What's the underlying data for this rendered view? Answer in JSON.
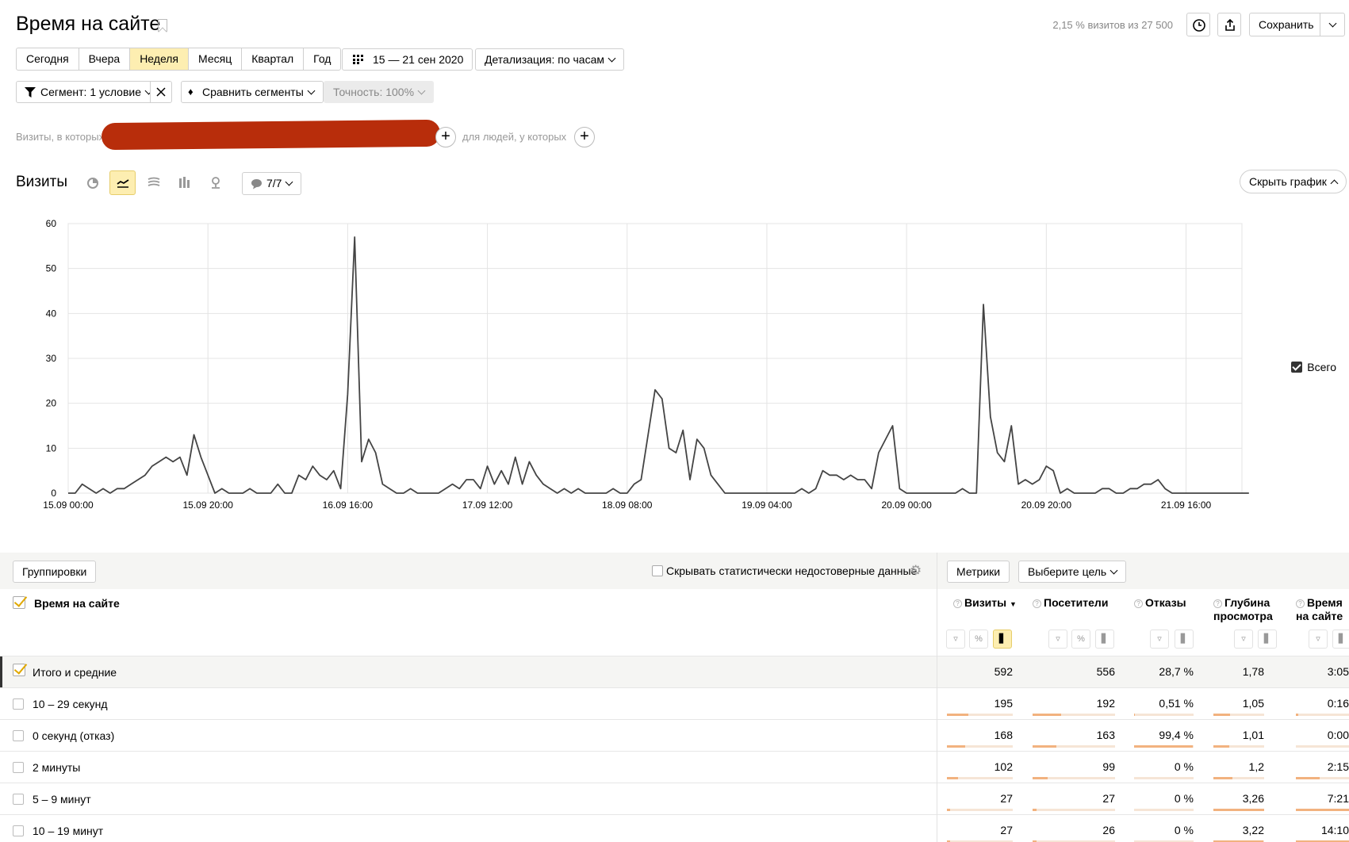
{
  "header": {
    "title": "Время на сайте",
    "visit_share": "2,15 % визитов из 27 500",
    "save_label": "Сохранить"
  },
  "periods": [
    "Сегодня",
    "Вчера",
    "Неделя",
    "Месяц",
    "Квартал",
    "Год"
  ],
  "active_period": "Неделя",
  "date_range": "15 — 21 сен 2020",
  "detail": "Детализация: по часам",
  "segment": {
    "label": "Сегмент: 1 условие",
    "compare_label": "Сравнить сегменты",
    "accuracy_label": "Точность: 100%",
    "visits_condition": "Визиты, в которых",
    "people_condition": "для людей, у которых"
  },
  "chart_panel": {
    "title": "Визиты",
    "notes": "7/7",
    "hide_label": "Скрыть график",
    "legend": "Всего"
  },
  "chart_data": {
    "type": "line",
    "series": [
      {
        "name": "Всего",
        "values": [
          0,
          0,
          2,
          1,
          0,
          1,
          0,
          1,
          1,
          2,
          3,
          4,
          6,
          7,
          8,
          7,
          8,
          4,
          13,
          8,
          4,
          0,
          1,
          0,
          0,
          0,
          1,
          0,
          0,
          0,
          2,
          0,
          0,
          4,
          3,
          6,
          4,
          3,
          5,
          1,
          22,
          57,
          7,
          12,
          9,
          2,
          1,
          0,
          0,
          1,
          0,
          0,
          0,
          0,
          1,
          2,
          1,
          3,
          3,
          1,
          6,
          2,
          5,
          2,
          8,
          2,
          7,
          4,
          2,
          1,
          0,
          1,
          0,
          1,
          0,
          0,
          0,
          0,
          1,
          0,
          0,
          2,
          3,
          13,
          23,
          21,
          10,
          9,
          14,
          3,
          12,
          10,
          4,
          2,
          0,
          0,
          0,
          0,
          0,
          0,
          0,
          0,
          0,
          0,
          0,
          1,
          0,
          1,
          5,
          4,
          4,
          3,
          4,
          3,
          3,
          1,
          9,
          12,
          15,
          1,
          0,
          0,
          0,
          0,
          0,
          0,
          0,
          0,
          1,
          0,
          0,
          42,
          17,
          9,
          7,
          15,
          2,
          3,
          2,
          3,
          6,
          5,
          0,
          1,
          0,
          0,
          0,
          0,
          1,
          1,
          0,
          0,
          1,
          1,
          2,
          2,
          3,
          1,
          0,
          0,
          0,
          0,
          0,
          0,
          0,
          0,
          0,
          0,
          0,
          0
        ]
      }
    ],
    "x_tick_labels": [
      "15.09 00:00",
      "15.09 20:00",
      "16.09 16:00",
      "17.09 12:00",
      "18.09 08:00",
      "19.09 04:00",
      "20.09 00:00",
      "20.09 20:00",
      "21.09 16:00"
    ],
    "x_tick_hours": [
      0,
      20,
      40,
      60,
      80,
      100,
      120,
      140,
      160
    ],
    "y_ticks": [
      0,
      10,
      20,
      30,
      40,
      50,
      60
    ],
    "ylim": [
      0,
      60
    ],
    "x_hours_total": 168,
    "grid": true,
    "legend_position": "right"
  },
  "table": {
    "groupings_label": "Группировки",
    "hide_unreliable_label": "Скрывать статистически недостоверные данные",
    "metrics_label": "Метрики",
    "goal_label": "Выберите цель",
    "dimension_header": "Время на сайте",
    "columns": [
      {
        "l1": "Визиты",
        "l2": "",
        "sort": "▼"
      },
      {
        "l1": "Посетители",
        "l2": ""
      },
      {
        "l1": "Отказы",
        "l2": ""
      },
      {
        "l1": "Глубина",
        "l2": "просмотра"
      },
      {
        "l1": "Время",
        "l2": "на сайте"
      }
    ],
    "rows": [
      {
        "label": "Итого и средние",
        "cells": [
          "592",
          "556",
          "28,7 %",
          "1,78",
          "3:05"
        ]
      },
      {
        "label": "10 – 29 секунд",
        "cells": [
          "195",
          "192",
          "0,51 %",
          "1,05",
          "0:16"
        ],
        "bars": [
          0.33,
          0.345,
          0.005,
          0.33,
          0.05
        ]
      },
      {
        "label": "0 секунд (отказ)",
        "cells": [
          "168",
          "163",
          "99,4 %",
          "1,01",
          "0:00"
        ],
        "bars": [
          0.28,
          0.29,
          0.99,
          0.31,
          0.0
        ]
      },
      {
        "label": "2 минуты",
        "cells": [
          "102",
          "99",
          "0 %",
          "1,2",
          "2:15"
        ],
        "bars": [
          0.17,
          0.18,
          0.0,
          0.37,
          0.45
        ]
      },
      {
        "label": "5 – 9 минут",
        "cells": [
          "27",
          "27",
          "0 %",
          "3,26",
          "7:21"
        ],
        "bars": [
          0.05,
          0.05,
          0.0,
          1.0,
          1.0
        ]
      },
      {
        "label": "10 – 19 минут",
        "cells": [
          "27",
          "26",
          "0 %",
          "3,22",
          "14:10"
        ],
        "bars": [
          0.05,
          0.05,
          0.0,
          0.99,
          1.0
        ]
      }
    ]
  }
}
